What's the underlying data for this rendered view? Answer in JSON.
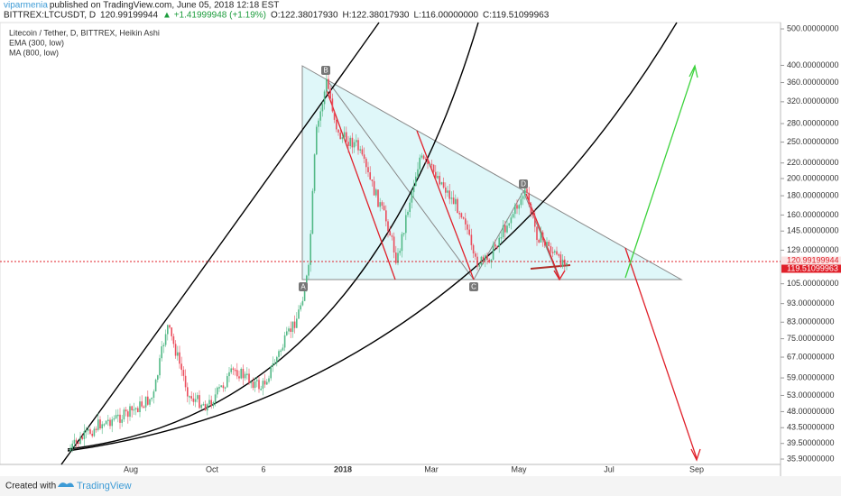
{
  "header": {
    "author": "viparmenia",
    "published": "published on TradingView.com, June 05, 2018 12:18 EST",
    "symbol": "BITTREX:LTCUSDT, D",
    "last": "120.99199944",
    "change": "▲ +1.41999948 (+1.19%)",
    "open": "O:122.38017930",
    "high": "H:122.38017930",
    "low": "L:116.00000000",
    "close": "C:119.51099963"
  },
  "legend": [
    "Litecoin / Tether, D, BITTREX, Heikin Ashi",
    "EMA (300, low)",
    "MA (800, low)"
  ],
  "price_axis": [
    "500.00000000",
    "400.00000000",
    "360.00000000",
    "320.00000000",
    "280.00000000",
    "250.00000000",
    "220.00000000",
    "200.00000000",
    "180.00000000",
    "160.00000000",
    "145.00000000",
    "129.00000000",
    "105.00000000",
    "93.00000000",
    "83.00000000",
    "75.00000000",
    "67.00000000",
    "59.00000000",
    "53.00000000",
    "48.00000000",
    "43.50000000",
    "39.50000000",
    "35.90000000"
  ],
  "price_tags": [
    "120.99199944",
    "119.51099963"
  ],
  "time_axis": [
    "Aug",
    "Oct",
    "6",
    "2018",
    "Mar",
    "May",
    "Jul",
    "Sep"
  ],
  "points": [
    "A",
    "B",
    "C",
    "D"
  ],
  "footer": {
    "created": "Created with",
    "brand": "TradingView"
  }
}
